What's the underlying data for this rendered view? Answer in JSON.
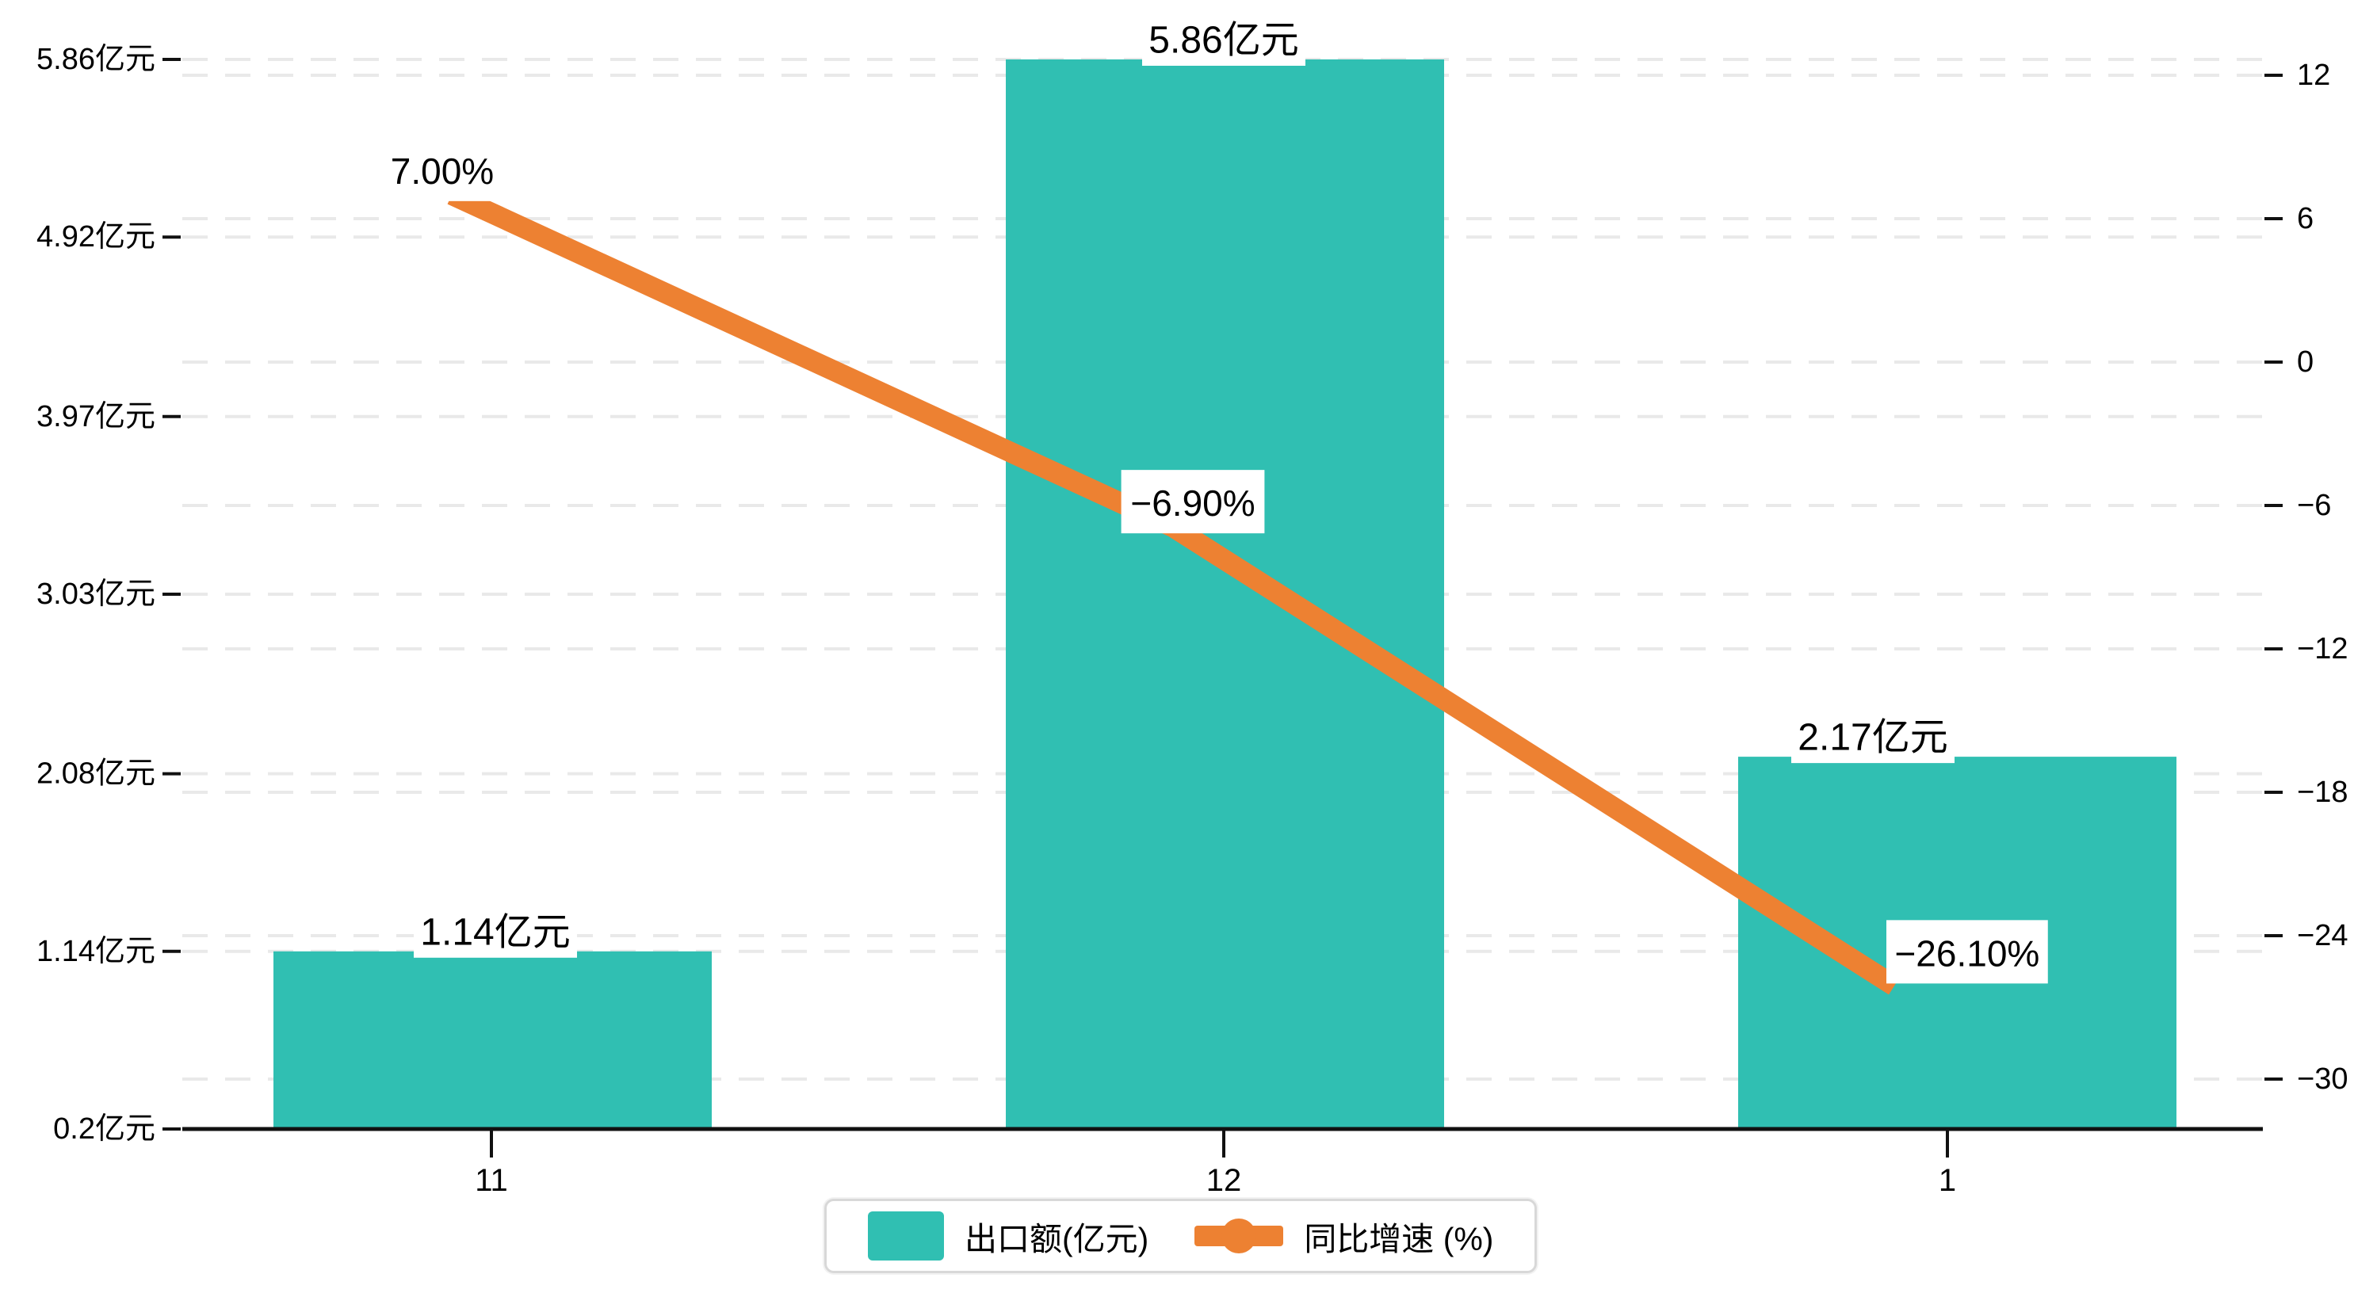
{
  "chart_data": {
    "type": "bar+line",
    "categories": [
      "11",
      "12",
      "1"
    ],
    "series": [
      {
        "name": "出口额(亿元)",
        "type": "bar",
        "axis": "left",
        "values": [
          1.14,
          5.86,
          2.17
        ],
        "labels": [
          "1.14亿元",
          "5.86亿元",
          "2.17亿元"
        ],
        "color": "#30bfb2"
      },
      {
        "name": "同比增速 (%)",
        "type": "line",
        "axis": "right",
        "values": [
          7.0,
          -6.9,
          -26.1
        ],
        "labels": [
          "7.00%",
          "−6.90%",
          "−26.10%"
        ],
        "color": "#ed8132"
      }
    ],
    "left_axis": {
      "tick_values": [
        0.2,
        1.14,
        2.08,
        3.03,
        3.97,
        4.92,
        5.86
      ],
      "tick_labels": [
        "0.2亿元",
        "1.14亿元",
        "2.08亿元",
        "3.03亿元",
        "3.97亿元",
        "4.92亿元",
        "5.86亿元"
      ],
      "min": 0.2,
      "max": 5.86
    },
    "right_axis": {
      "tick_values": [
        12,
        6,
        0,
        -6,
        -12,
        -18,
        -24,
        -30
      ],
      "tick_labels": [
        "12",
        "6",
        "0",
        "−6",
        "−12",
        "−18",
        "−24",
        "−30"
      ],
      "min": -30,
      "max": 12
    },
    "xlabel": "",
    "ylabel": "",
    "title": "",
    "grid": "dashed-horizontal",
    "legend_position": "bottom-center",
    "legend": [
      {
        "label": "出口额(亿元)",
        "marker": "bar-swatch",
        "color": "#30bfb2"
      },
      {
        "label": "同比增速 (%)",
        "marker": "line-circle",
        "color": "#ed8132"
      }
    ]
  },
  "colors": {
    "bar": "#30bfb2",
    "line": "#ed8132",
    "grid": "#e9e9e9",
    "axis": "#111111",
    "label_bg": "#ffffff",
    "legend_border": "#d8d8d8",
    "text": "#000000"
  }
}
